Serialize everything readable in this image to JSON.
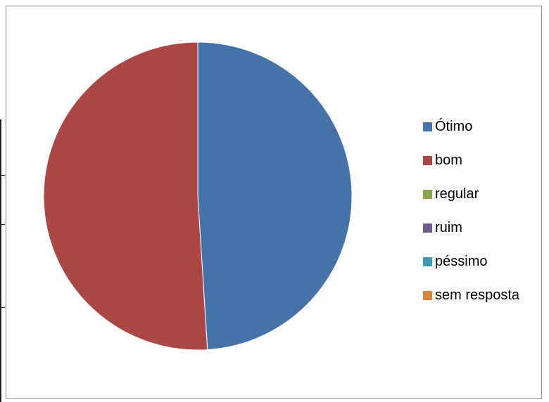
{
  "chart_data": {
    "type": "pie",
    "title": "",
    "slices": [
      {
        "label": "Ótimo",
        "value": 49,
        "color": "#4572A7"
      },
      {
        "label": "bom",
        "value": 51,
        "color": "#AA4643"
      },
      {
        "label": "regular",
        "value": 0,
        "color": "#89A54E"
      },
      {
        "label": "ruim",
        "value": 0,
        "color": "#71588F"
      },
      {
        "label": "péssimo",
        "value": 0,
        "color": "#4198AF"
      },
      {
        "label": "sem resposta",
        "value": 0,
        "color": "#DB843D"
      }
    ],
    "legend_position": "right",
    "start_angle_deg": 0,
    "direction": "clockwise"
  }
}
